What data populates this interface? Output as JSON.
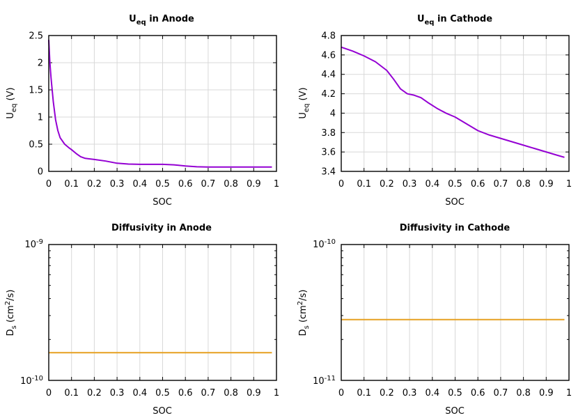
{
  "chart_data": [
    {
      "type": "line",
      "title_main": "U",
      "title_sub": "eq",
      "title_rest": " in Anode",
      "xlabel": "SOC",
      "ylabel_main": "U",
      "ylabel_sub": "eq",
      "ylabel_rest": " (V)",
      "xlim": [
        0,
        1
      ],
      "ylim": [
        0,
        2.5
      ],
      "xticks": [
        "0",
        "0.1",
        "0.2",
        "0.3",
        "0.4",
        "0.5",
        "0.6",
        "0.7",
        "0.8",
        "0.9",
        "1"
      ],
      "yticks": [
        "0",
        "0.5",
        "1",
        "1.5",
        "2",
        "2.5"
      ],
      "grid": true,
      "color": "#9400d3",
      "series": [
        {
          "x": [
            0.0,
            0.005,
            0.01,
            0.02,
            0.03,
            0.04,
            0.05,
            0.07,
            0.09,
            0.1,
            0.12,
            0.14,
            0.16,
            0.2,
            0.25,
            0.3,
            0.35,
            0.4,
            0.45,
            0.5,
            0.55,
            0.6,
            0.65,
            0.7,
            0.75,
            0.8,
            0.85,
            0.9,
            0.95,
            0.98
          ],
          "y": [
            2.42,
            2.0,
            1.72,
            1.28,
            0.95,
            0.75,
            0.62,
            0.5,
            0.43,
            0.4,
            0.33,
            0.27,
            0.24,
            0.22,
            0.19,
            0.15,
            0.135,
            0.13,
            0.13,
            0.13,
            0.12,
            0.1,
            0.085,
            0.08,
            0.08,
            0.08,
            0.08,
            0.08,
            0.08,
            0.08
          ]
        }
      ]
    },
    {
      "type": "line",
      "title_main": "U",
      "title_sub": "eq",
      "title_rest": " in Cathode",
      "xlabel": "SOC",
      "ylabel_main": "U",
      "ylabel_sub": "eq",
      "ylabel_rest": " (V)",
      "xlim": [
        0,
        1
      ],
      "ylim": [
        3.4,
        4.8
      ],
      "xticks": [
        "0",
        "0.1",
        "0.2",
        "0.3",
        "0.4",
        "0.5",
        "0.6",
        "0.7",
        "0.8",
        "0.9",
        "1"
      ],
      "yticks": [
        "3.4",
        "3.6",
        "3.8",
        "4",
        "4.2",
        "4.4",
        "4.6",
        "4.8"
      ],
      "grid": true,
      "color": "#9400d3",
      "series": [
        {
          "x": [
            0.0,
            0.05,
            0.1,
            0.15,
            0.2,
            0.23,
            0.26,
            0.29,
            0.32,
            0.35,
            0.38,
            0.42,
            0.46,
            0.5,
            0.55,
            0.6,
            0.65,
            0.7,
            0.75,
            0.8,
            0.85,
            0.9,
            0.95,
            0.98
          ],
          "y": [
            4.68,
            4.64,
            4.59,
            4.53,
            4.44,
            4.35,
            4.25,
            4.2,
            4.185,
            4.16,
            4.11,
            4.05,
            4.0,
            3.96,
            3.89,
            3.82,
            3.775,
            3.74,
            3.705,
            3.67,
            3.635,
            3.6,
            3.565,
            3.545
          ]
        }
      ]
    },
    {
      "type": "line",
      "title_main": "Diffusivity in Anode",
      "xlabel": "SOC",
      "ylabel_main": "D",
      "ylabel_sub": "s",
      "ylabel_unit_pre": " (cm",
      "ylabel_unit_sup": "2",
      "ylabel_unit_post": "/s)",
      "xlim": [
        0,
        1
      ],
      "ylim": [
        1e-10,
        1e-09
      ],
      "yscale": "log",
      "ytick_base_top": "10",
      "ytick_exp_top": "-9",
      "ytick_base_bottom": "10",
      "ytick_exp_bottom": "-10",
      "xticks": [
        "0",
        "0.1",
        "0.2",
        "0.3",
        "0.4",
        "0.5",
        "0.6",
        "0.7",
        "0.8",
        "0.9",
        "1"
      ],
      "grid": true,
      "color": "#e6a020",
      "series": [
        {
          "x": [
            0.0,
            0.98
          ],
          "y": [
            1.6e-10,
            1.6e-10
          ]
        }
      ]
    },
    {
      "type": "line",
      "title_main": "Diffusivity in Cathode",
      "xlabel": "SOC",
      "ylabel_main": "D",
      "ylabel_sub": "s",
      "ylabel_unit_pre": " (cm",
      "ylabel_unit_sup": "2",
      "ylabel_unit_post": "/s)",
      "xlim": [
        0,
        1
      ],
      "ylim": [
        1e-11,
        1e-10
      ],
      "yscale": "log",
      "ytick_base_top": "10",
      "ytick_exp_top": "-10",
      "ytick_base_bottom": "10",
      "ytick_exp_bottom": "-11",
      "xticks": [
        "0",
        "0.1",
        "0.2",
        "0.3",
        "0.4",
        "0.5",
        "0.6",
        "0.7",
        "0.8",
        "0.9",
        "1"
      ],
      "grid": true,
      "color": "#e6a020",
      "series": [
        {
          "x": [
            0.0,
            0.98
          ],
          "y": [
            2.8e-11,
            2.8e-11
          ]
        }
      ]
    }
  ]
}
